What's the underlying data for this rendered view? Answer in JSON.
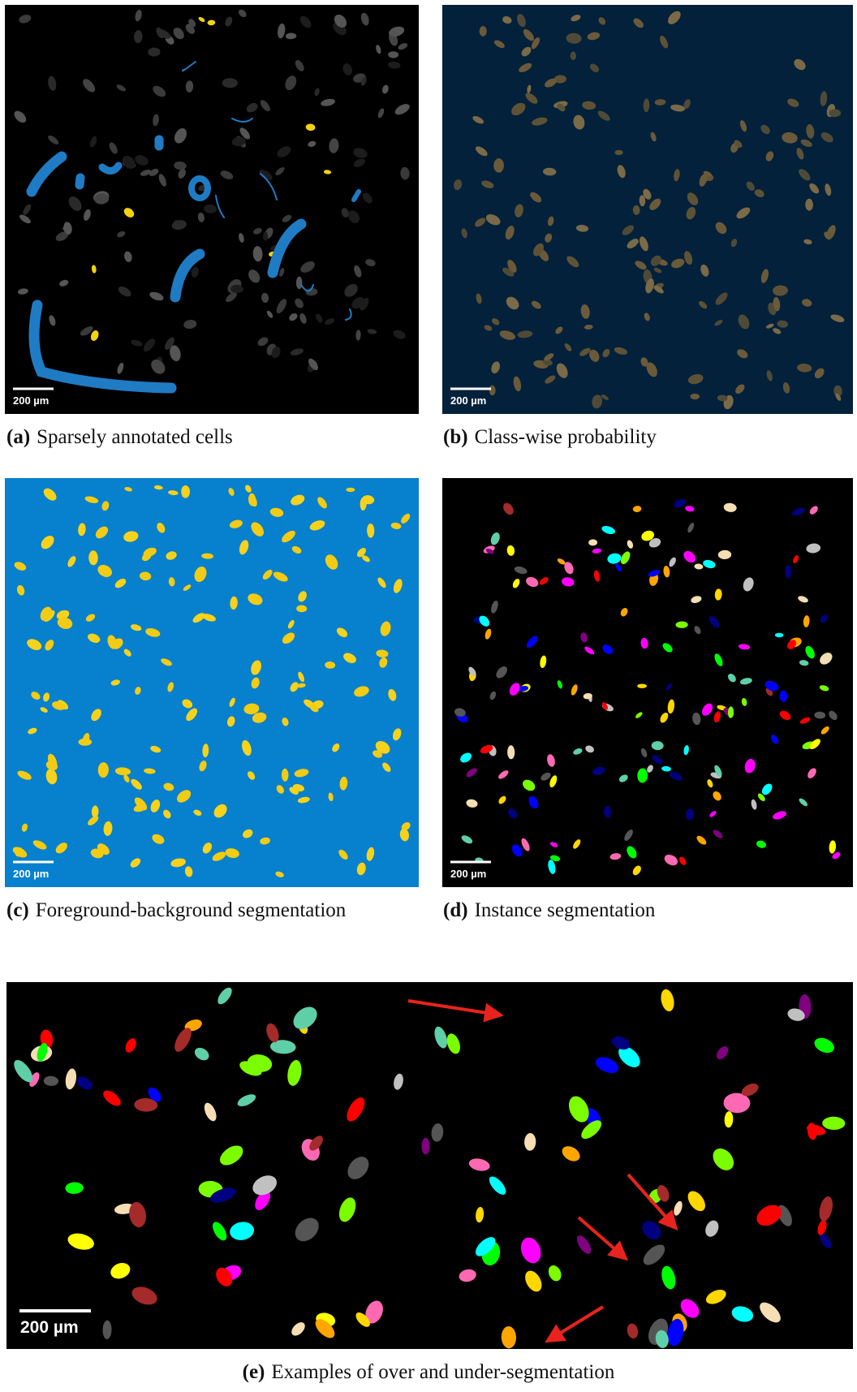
{
  "panels": [
    {
      "label": "(a)",
      "caption": "Sparsely annotated cells",
      "scale_bar": "200 µm"
    },
    {
      "label": "(b)",
      "caption": "Class-wise probability",
      "scale_bar": "200 µm"
    },
    {
      "label": "(c)",
      "caption": "Foreground-background segmentation",
      "scale_bar": "200 µm"
    },
    {
      "label": "(d)",
      "caption": "Instance segmentation",
      "scale_bar": "200 µm"
    },
    {
      "label": "(e)",
      "caption": "Examples of over and under-segmentation",
      "scale_bar": "200 µm"
    }
  ]
}
